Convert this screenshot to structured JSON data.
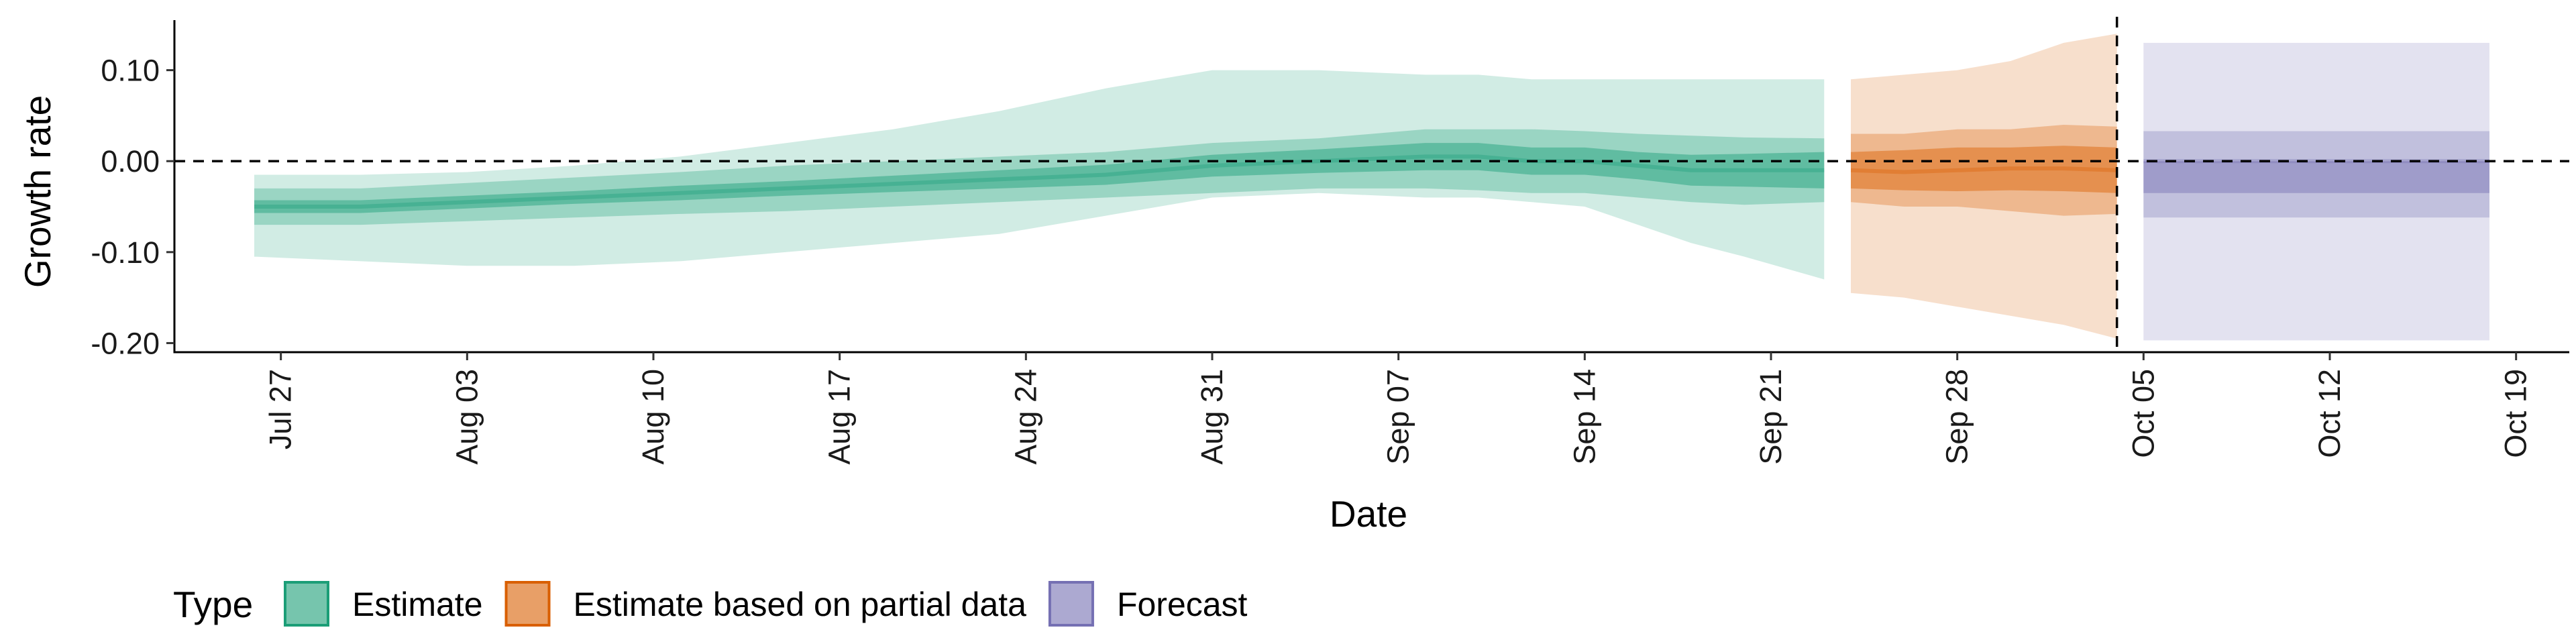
{
  "chart_data": {
    "type": "area",
    "xlabel": "Date",
    "ylabel": "Growth rate",
    "ylim": [
      -0.21,
      0.155
    ],
    "xlim": [
      "2020-07-23",
      "2020-10-21"
    ],
    "y_ticks": [
      0.1,
      0.0,
      -0.1,
      -0.2
    ],
    "y_tick_labels": [
      "0.10",
      "0.00",
      "-0.10",
      "-0.20"
    ],
    "x_ticks": [
      "2020-07-27",
      "2020-08-03",
      "2020-08-10",
      "2020-08-17",
      "2020-08-24",
      "2020-08-31",
      "2020-09-07",
      "2020-09-14",
      "2020-09-21",
      "2020-09-28",
      "2020-10-05",
      "2020-10-12",
      "2020-10-19"
    ],
    "x_tick_labels": [
      "Jul 27",
      "Aug 03",
      "Aug 10",
      "Aug 17",
      "Aug 24",
      "Aug 31",
      "Sep 07",
      "Sep 14",
      "Sep 21",
      "Sep 28",
      "Oct 05",
      "Oct 12",
      "Oct 19"
    ],
    "reference_lines": {
      "horizontal_y": 0.0,
      "vertical_x": "2020-10-04"
    },
    "grid": false,
    "legend_position": "bottom-left",
    "legend_title": "Type",
    "series": [
      {
        "name": "Estimate",
        "color": "#1b9e77",
        "x": [
          "2020-07-26",
          "2020-07-30",
          "2020-08-03",
          "2020-08-07",
          "2020-08-11",
          "2020-08-15",
          "2020-08-19",
          "2020-08-23",
          "2020-08-27",
          "2020-08-31",
          "2020-09-04",
          "2020-09-08",
          "2020-09-10",
          "2020-09-12",
          "2020-09-14",
          "2020-09-16",
          "2020-09-18",
          "2020-09-20",
          "2020-09-23"
        ],
        "median": [
          -0.05,
          -0.05,
          -0.045,
          -0.04,
          -0.035,
          -0.03,
          -0.025,
          -0.02,
          -0.015,
          -0.005,
          0.0,
          0.005,
          0.005,
          0.0,
          0.0,
          -0.005,
          -0.01,
          -0.01,
          -0.01
        ],
        "ci50": [
          [
            -0.057,
            -0.043
          ],
          [
            -0.057,
            -0.043
          ],
          [
            -0.052,
            -0.038
          ],
          [
            -0.047,
            -0.033
          ],
          [
            -0.043,
            -0.027
          ],
          [
            -0.038,
            -0.022
          ],
          [
            -0.034,
            -0.016
          ],
          [
            -0.03,
            -0.01
          ],
          [
            -0.026,
            -0.004
          ],
          [
            -0.017,
            0.007
          ],
          [
            -0.013,
            0.013
          ],
          [
            -0.01,
            0.02
          ],
          [
            -0.01,
            0.02
          ],
          [
            -0.015,
            0.015
          ],
          [
            -0.015,
            0.015
          ],
          [
            -0.02,
            0.01
          ],
          [
            -0.027,
            0.007
          ],
          [
            -0.028,
            0.008
          ],
          [
            -0.03,
            0.01
          ]
        ],
        "ci90": [
          [
            -0.07,
            -0.03
          ],
          [
            -0.07,
            -0.03
          ],
          [
            -0.066,
            -0.024
          ],
          [
            -0.062,
            -0.018
          ],
          [
            -0.058,
            -0.012
          ],
          [
            -0.055,
            -0.005
          ],
          [
            -0.05,
            0.0
          ],
          [
            -0.045,
            0.005
          ],
          [
            -0.04,
            0.01
          ],
          [
            -0.035,
            0.02
          ],
          [
            -0.03,
            0.025
          ],
          [
            -0.03,
            0.035
          ],
          [
            -0.032,
            0.035
          ],
          [
            -0.035,
            0.035
          ],
          [
            -0.035,
            0.033
          ],
          [
            -0.04,
            0.03
          ],
          [
            -0.045,
            0.028
          ],
          [
            -0.048,
            0.026
          ],
          [
            -0.045,
            0.025
          ]
        ],
        "ci_upper_band": [
          [
            -0.105,
            -0.015
          ],
          [
            -0.11,
            -0.015
          ],
          [
            -0.115,
            -0.012
          ],
          [
            -0.115,
            -0.005
          ],
          [
            -0.11,
            0.005
          ],
          [
            -0.1,
            0.02
          ],
          [
            -0.09,
            0.035
          ],
          [
            -0.08,
            0.055
          ],
          [
            -0.06,
            0.08
          ],
          [
            -0.04,
            0.1
          ],
          [
            -0.035,
            0.1
          ],
          [
            -0.04,
            0.095
          ],
          [
            -0.04,
            0.095
          ],
          [
            -0.045,
            0.09
          ],
          [
            -0.05,
            0.09
          ],
          [
            -0.07,
            0.09
          ],
          [
            -0.09,
            0.09
          ],
          [
            -0.105,
            0.09
          ],
          [
            -0.13,
            0.09
          ]
        ]
      },
      {
        "name": "Estimate based on partial data",
        "color": "#d95f02",
        "x": [
          "2020-09-24",
          "2020-09-26",
          "2020-09-28",
          "2020-09-30",
          "2020-10-02",
          "2020-10-04"
        ],
        "median": [
          -0.01,
          -0.012,
          -0.01,
          -0.008,
          -0.008,
          -0.01
        ],
        "ci50": [
          [
            -0.03,
            0.01
          ],
          [
            -0.032,
            0.012
          ],
          [
            -0.033,
            0.015
          ],
          [
            -0.032,
            0.015
          ],
          [
            -0.033,
            0.017
          ],
          [
            -0.035,
            0.015
          ]
        ],
        "ci90": [
          [
            -0.045,
            0.03
          ],
          [
            -0.05,
            0.03
          ],
          [
            -0.05,
            0.035
          ],
          [
            -0.055,
            0.035
          ],
          [
            -0.06,
            0.04
          ],
          [
            -0.058,
            0.038
          ]
        ],
        "ci_upper_band": [
          [
            -0.145,
            0.09
          ],
          [
            -0.15,
            0.095
          ],
          [
            -0.16,
            0.1
          ],
          [
            -0.17,
            0.11
          ],
          [
            -0.18,
            0.13
          ],
          [
            -0.195,
            0.14
          ]
        ]
      },
      {
        "name": "Forecast",
        "color": "#7570b3",
        "x": [
          "2020-10-05",
          "2020-10-18"
        ],
        "median": [
          0.0,
          0.0
        ],
        "ci50": [
          [
            -0.035,
            0.0
          ],
          [
            -0.035,
            0.0
          ]
        ],
        "ci90": [
          [
            -0.062,
            0.033
          ],
          [
            -0.062,
            0.033
          ]
        ],
        "ci_upper_band": [
          [
            -0.197,
            0.13
          ],
          [
            -0.197,
            0.13
          ]
        ]
      }
    ]
  },
  "colors": {
    "estimate": "#1b9e77",
    "partial": "#d95f02",
    "forecast": "#7570b3",
    "axis": "#000000"
  }
}
